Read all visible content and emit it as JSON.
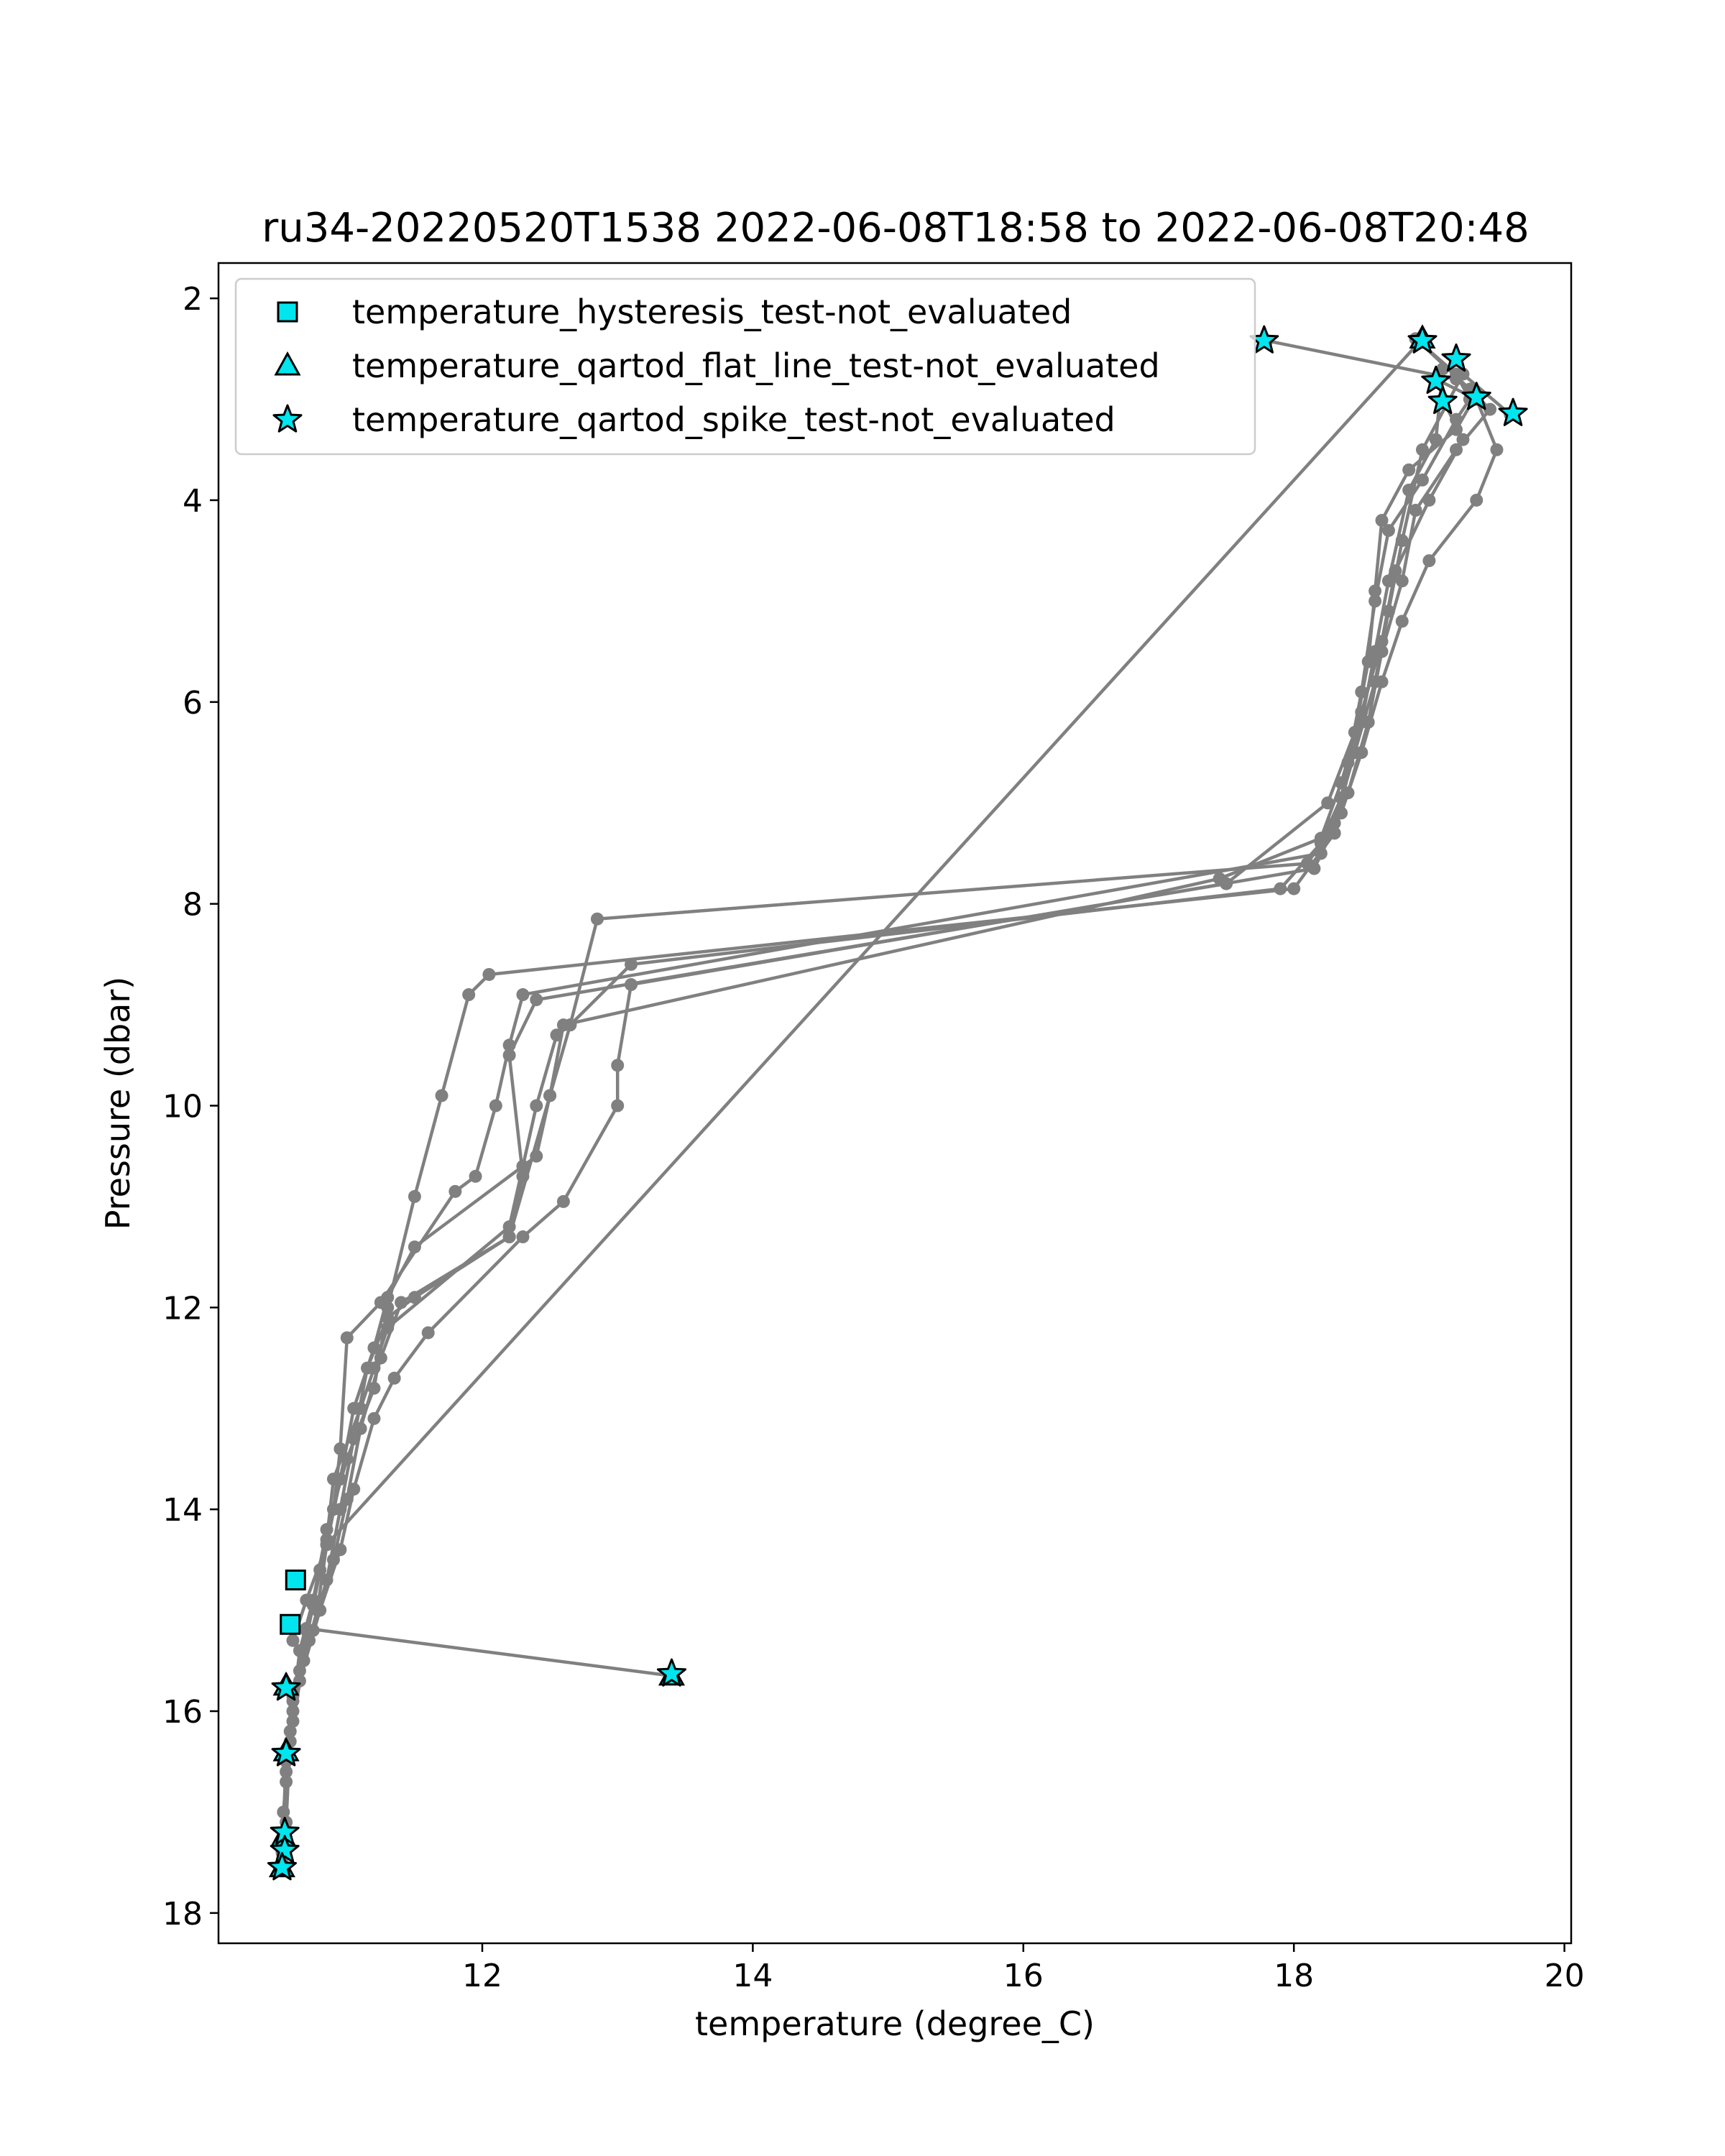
{
  "chart_data": {
    "type": "line",
    "title": "ru34-20220520T1538 2022-06-08T18:58 to 2022-06-08T20:48",
    "xlabel": "temperature (degree_C)",
    "ylabel": "Pressure (dbar)",
    "xlim": [
      10.05,
      20.05
    ],
    "ylim": [
      1.65,
      18.3
    ],
    "y_inverted": true,
    "x_ticks": [
      12,
      14,
      16,
      18,
      20
    ],
    "y_ticks": [
      2,
      4,
      6,
      8,
      10,
      12,
      14,
      16,
      18
    ],
    "legend_placement": "upper left",
    "colors": {
      "profile_line": "#808080",
      "flag_fill": "#00e5ee",
      "flag_edge": "#000000"
    },
    "profiles": [
      [
        [
          18.9,
          2.4
        ],
        [
          19.2,
          2.75
        ],
        [
          19.3,
          3.0
        ],
        [
          19.2,
          3.2
        ],
        [
          18.95,
          3.8
        ],
        [
          18.7,
          4.3
        ],
        [
          18.6,
          5.0
        ],
        [
          18.5,
          5.9
        ],
        [
          18.4,
          6.6
        ],
        [
          18.3,
          7.3
        ],
        [
          18.0,
          7.85
        ],
        [
          12.05,
          8.7
        ],
        [
          11.9,
          8.9
        ],
        [
          11.7,
          9.9
        ],
        [
          11.5,
          10.9
        ],
        [
          11.3,
          12.0
        ],
        [
          11.2,
          12.8
        ],
        [
          11.0,
          13.5
        ],
        [
          10.85,
          14.2
        ],
        [
          10.75,
          14.9
        ],
        [
          10.65,
          15.4
        ],
        [
          10.6,
          16.0
        ],
        [
          10.55,
          16.6
        ],
        [
          10.52,
          17.5
        ]
      ],
      [
        [
          18.9,
          2.4
        ],
        [
          19.3,
          2.9
        ],
        [
          19.45,
          3.1
        ],
        [
          19.2,
          3.5
        ],
        [
          18.9,
          4.1
        ],
        [
          18.8,
          4.8
        ],
        [
          18.65,
          5.5
        ],
        [
          18.55,
          6.2
        ],
        [
          18.4,
          6.9
        ],
        [
          18.2,
          7.5
        ],
        [
          12.3,
          8.9
        ],
        [
          12.2,
          9.4
        ],
        [
          12.1,
          10.0
        ],
        [
          11.95,
          10.7
        ],
        [
          11.8,
          10.85
        ],
        [
          11.25,
          11.95
        ],
        [
          11.0,
          12.3
        ],
        [
          10.95,
          13.4
        ],
        [
          10.9,
          14.0
        ],
        [
          10.8,
          14.6
        ],
        [
          10.7,
          15.2
        ],
        [
          10.6,
          15.9
        ],
        [
          10.55,
          16.5
        ],
        [
          10.53,
          17.3
        ]
      ],
      [
        [
          19.05,
          2.8
        ],
        [
          19.35,
          3.0
        ],
        [
          19.5,
          3.5
        ],
        [
          19.35,
          4.0
        ],
        [
          19.0,
          4.6
        ],
        [
          18.8,
          5.2
        ],
        [
          18.65,
          5.8
        ],
        [
          18.5,
          6.5
        ],
        [
          18.35,
          7.1
        ],
        [
          18.15,
          7.65
        ],
        [
          13.1,
          8.8
        ],
        [
          13.0,
          9.6
        ],
        [
          13.0,
          10.0
        ],
        [
          12.6,
          10.95
        ],
        [
          12.3,
          11.3
        ],
        [
          11.6,
          12.25
        ],
        [
          11.35,
          12.7
        ],
        [
          11.2,
          13.1
        ],
        [
          11.05,
          13.8
        ],
        [
          10.95,
          14.4
        ],
        [
          10.8,
          15.0
        ],
        [
          10.65,
          15.7
        ],
        [
          10.58,
          16.3
        ],
        [
          10.55,
          17.1
        ]
      ],
      [
        [
          19.35,
          2.95
        ],
        [
          19.2,
          3.3
        ],
        [
          18.85,
          3.7
        ],
        [
          18.65,
          4.2
        ],
        [
          18.6,
          4.9
        ],
        [
          18.55,
          5.6
        ],
        [
          18.45,
          6.3
        ],
        [
          18.25,
          7.0
        ],
        [
          17.5,
          7.8
        ],
        [
          12.4,
          8.95
        ],
        [
          12.2,
          9.5
        ],
        [
          12.3,
          10.7
        ],
        [
          12.2,
          11.3
        ],
        [
          11.4,
          11.95
        ],
        [
          11.25,
          12.5
        ],
        [
          11.1,
          13.2
        ],
        [
          11.0,
          13.9
        ],
        [
          10.9,
          14.5
        ],
        [
          10.75,
          15.2
        ],
        [
          10.6,
          15.8
        ],
        [
          10.55,
          16.4
        ],
        [
          10.52,
          17.55
        ]
      ],
      [
        [
          19.1,
          3.0
        ],
        [
          19.25,
          3.4
        ],
        [
          19.0,
          4.0
        ],
        [
          18.75,
          4.7
        ],
        [
          18.65,
          5.4
        ],
        [
          18.5,
          6.1
        ],
        [
          18.35,
          6.8
        ],
        [
          18.2,
          7.35
        ],
        [
          17.45,
          7.75
        ],
        [
          12.6,
          9.2
        ],
        [
          12.5,
          9.9
        ],
        [
          12.2,
          11.3
        ],
        [
          11.5,
          11.9
        ],
        [
          11.3,
          12.1
        ],
        [
          11.15,
          12.6
        ],
        [
          11.05,
          13.3
        ],
        [
          10.95,
          14.0
        ],
        [
          10.85,
          14.7
        ],
        [
          10.72,
          15.3
        ],
        [
          10.6,
          15.85
        ],
        [
          10.56,
          16.45
        ],
        [
          10.53,
          17.2
        ]
      ],
      [
        [
          19.6,
          3.15
        ],
        [
          19.25,
          2.75
        ],
        [
          18.95,
          3.5
        ],
        [
          18.8,
          4.4
        ],
        [
          18.7,
          5.1
        ],
        [
          18.6,
          5.8
        ],
        [
          18.45,
          6.5
        ],
        [
          18.3,
          7.2
        ],
        [
          18.1,
          7.6
        ],
        [
          12.85,
          8.15
        ],
        [
          12.65,
          9.2
        ],
        [
          12.5,
          9.9
        ],
        [
          12.4,
          10.5
        ],
        [
          11.5,
          11.4
        ],
        [
          11.3,
          11.9
        ],
        [
          11.2,
          12.4
        ],
        [
          11.05,
          13.0
        ],
        [
          10.95,
          13.7
        ],
        [
          10.85,
          14.35
        ],
        [
          10.78,
          15.0
        ],
        [
          10.68,
          15.5
        ],
        [
          10.6,
          16.1
        ],
        [
          10.55,
          16.7
        ],
        [
          10.52,
          17.4
        ]
      ],
      [
        [
          19.1,
          2.7
        ],
        [
          19.05,
          3.4
        ],
        [
          18.85,
          3.9
        ],
        [
          18.7,
          4.8
        ],
        [
          18.6,
          5.5
        ],
        [
          18.5,
          6.2
        ],
        [
          18.35,
          6.95
        ],
        [
          18.2,
          7.4
        ],
        [
          17.9,
          7.85
        ],
        [
          13.1,
          8.6
        ],
        [
          12.65,
          9.2
        ],
        [
          12.55,
          9.3
        ],
        [
          12.4,
          10.0
        ],
        [
          12.3,
          10.6
        ],
        [
          12.2,
          11.2
        ],
        [
          11.3,
          12.2
        ],
        [
          11.2,
          12.6
        ],
        [
          11.1,
          13.0
        ],
        [
          10.9,
          13.7
        ],
        [
          10.85,
          14.3
        ],
        [
          10.75,
          14.95
        ],
        [
          10.65,
          15.6
        ],
        [
          10.58,
          16.2
        ],
        [
          10.53,
          17.0
        ]
      ],
      [
        [
          18.95,
          2.4
        ],
        [
          10.85,
          14.35
        ],
        [
          10.7,
          14.9
        ],
        [
          10.6,
          15.3
        ]
      ],
      [
        [
          17.8,
          2.42
        ],
        [
          19.2,
          2.8
        ]
      ],
      [
        [
          10.7,
          15.18
        ],
        [
          13.4,
          15.65
        ]
      ]
    ],
    "series": [
      {
        "name": "temperature_hysteresis_test-not_evaluated",
        "marker": "square",
        "points": [
          [
            10.62,
            14.7
          ],
          [
            10.58,
            15.14
          ]
        ]
      },
      {
        "name": "temperature_qartod_flat_line_test-not_evaluated",
        "marker": "triangle",
        "points": [
          [
            18.95,
            2.4
          ],
          [
            13.4,
            15.65
          ],
          [
            10.55,
            15.75
          ],
          [
            10.55,
            16.4
          ],
          [
            10.53,
            17.25
          ],
          [
            10.52,
            17.55
          ]
        ]
      },
      {
        "name": "temperature_qartod_spike_test-not_evaluated",
        "marker": "star",
        "points": [
          [
            17.78,
            2.42
          ],
          [
            18.95,
            2.42
          ],
          [
            19.2,
            2.6
          ],
          [
            19.05,
            2.82
          ],
          [
            19.35,
            2.98
          ],
          [
            19.1,
            3.02
          ],
          [
            19.62,
            3.14
          ],
          [
            13.4,
            15.63
          ],
          [
            10.55,
            15.77
          ],
          [
            10.55,
            16.42
          ],
          [
            10.54,
            17.2
          ],
          [
            10.54,
            17.38
          ],
          [
            10.52,
            17.55
          ]
        ]
      }
    ]
  }
}
